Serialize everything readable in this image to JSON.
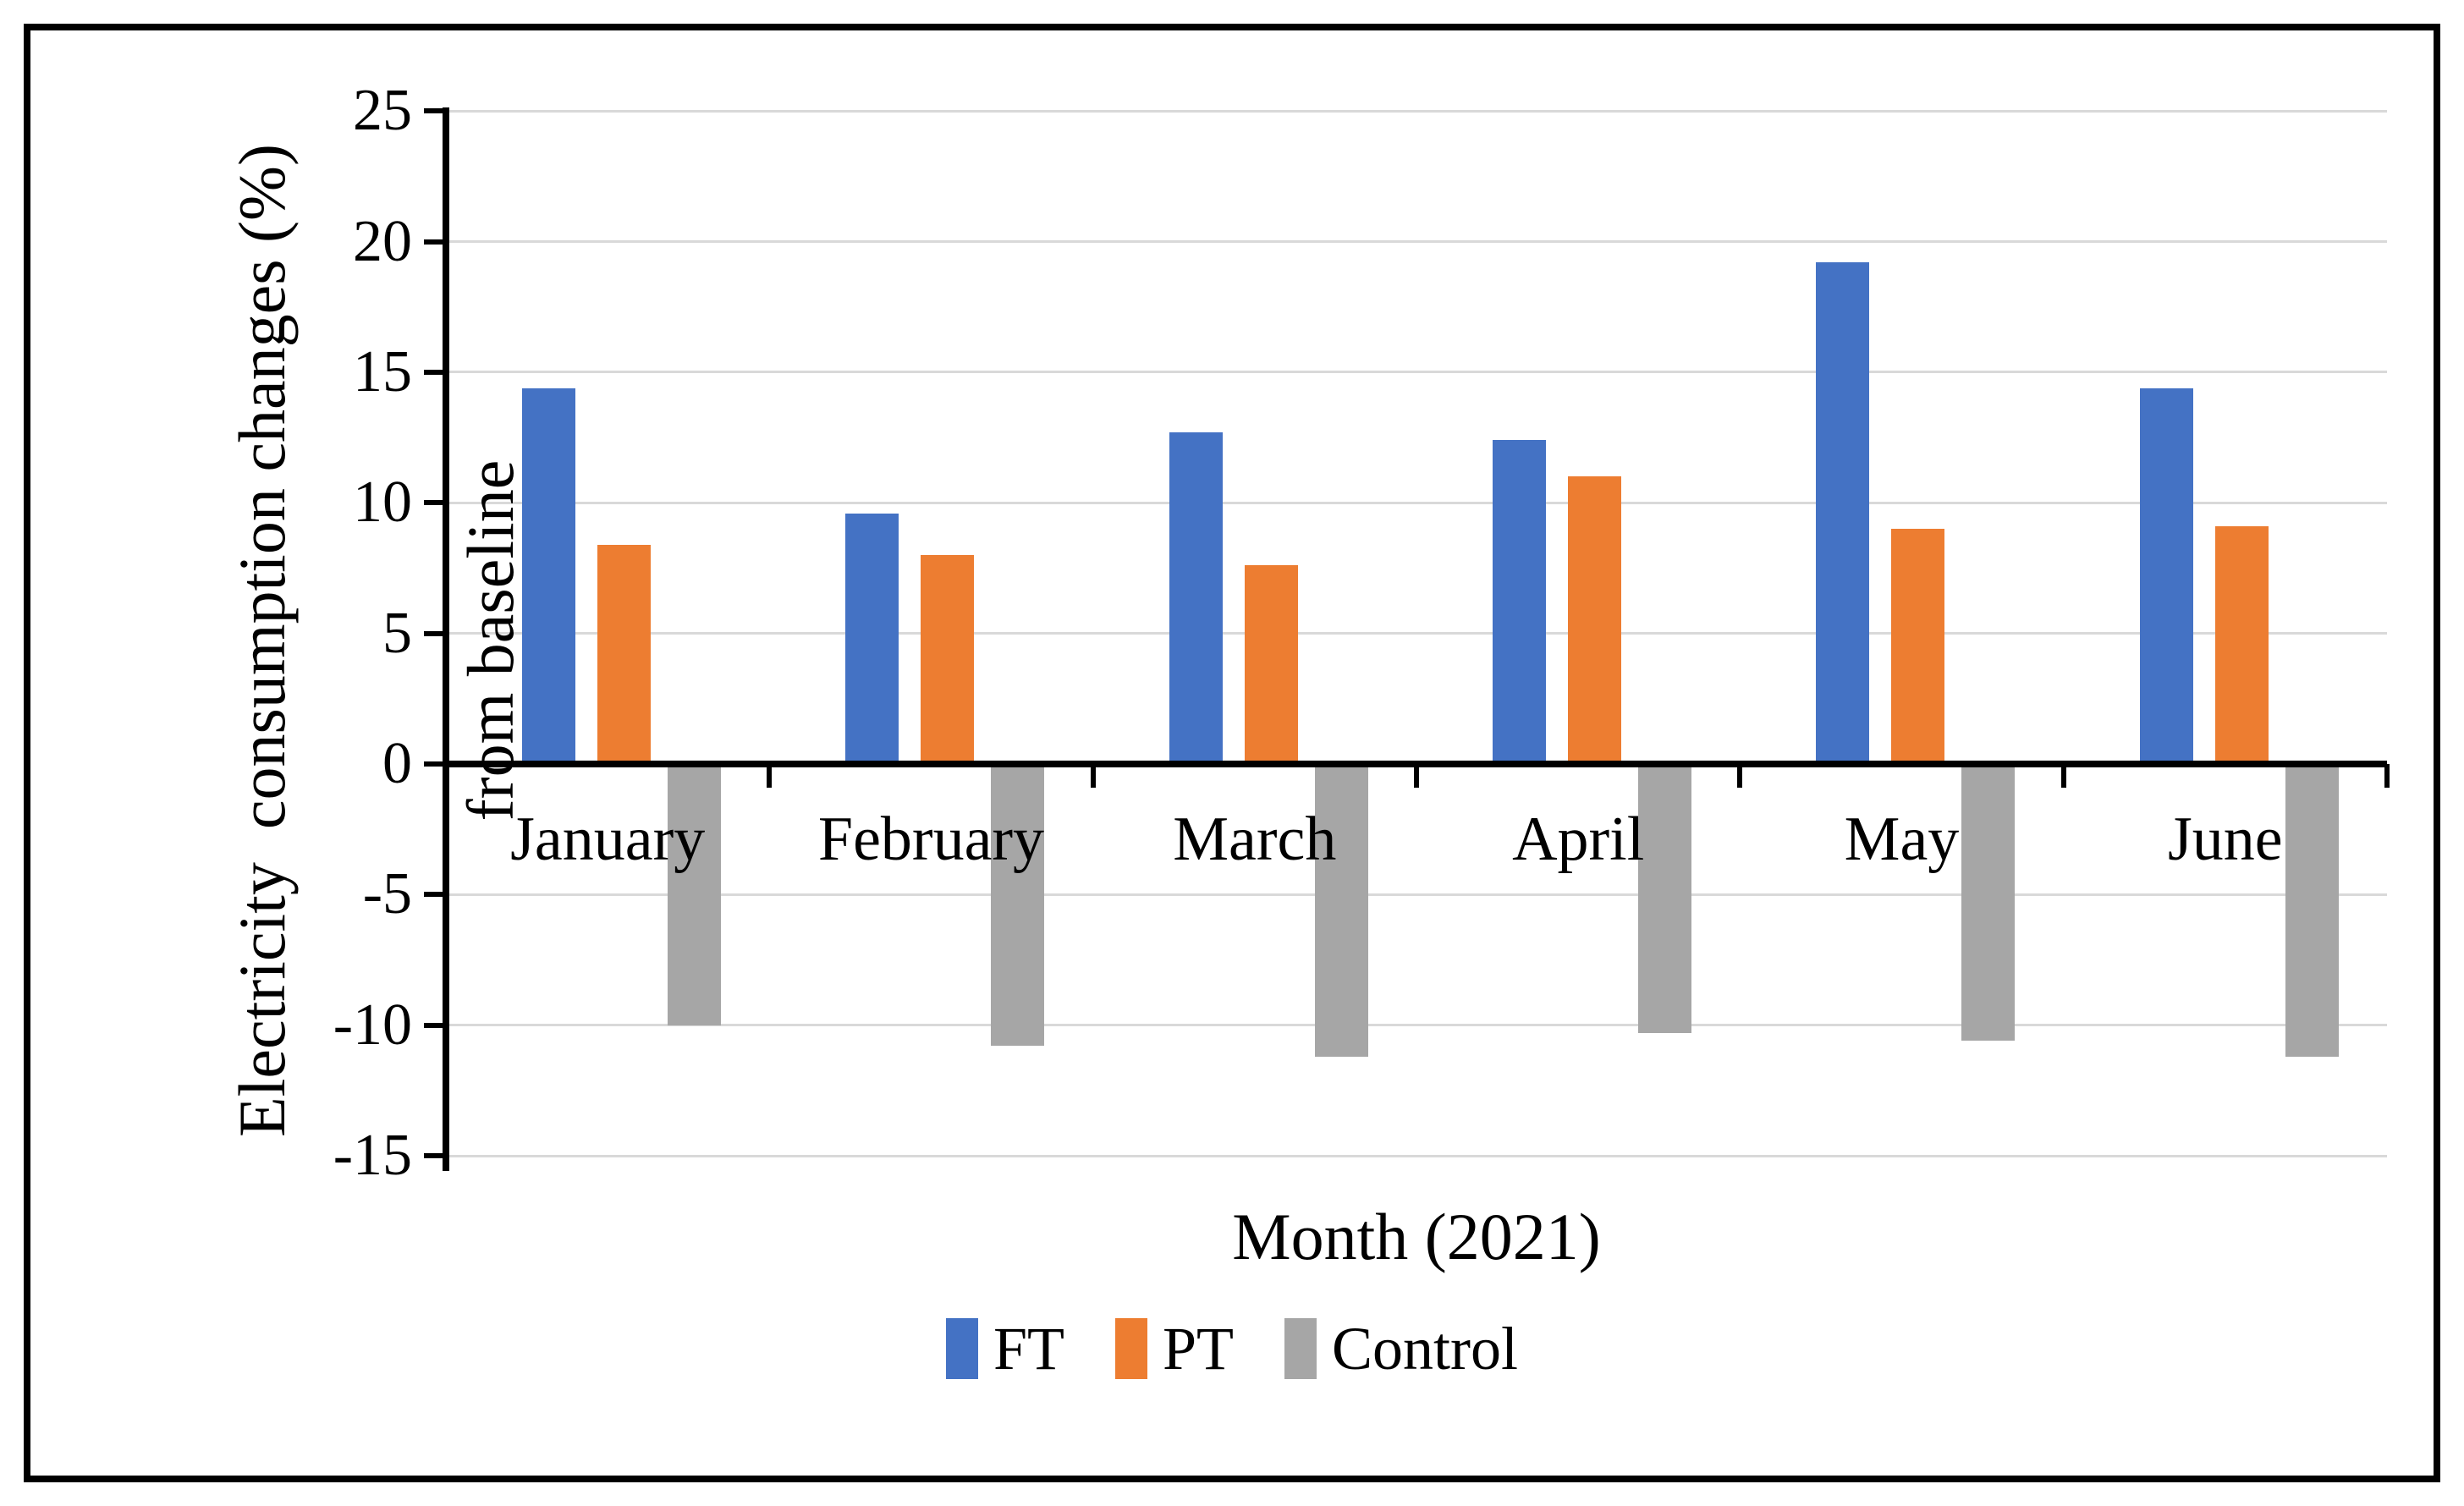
{
  "chart_data": {
    "type": "bar",
    "title": "",
    "xlabel": "Month (2021)",
    "ylabel_line1": "Electricity  consumption changes (%)",
    "ylabel_line2": "from baseline",
    "categories": [
      "January",
      "February",
      "March",
      "April",
      "May",
      "June"
    ],
    "series": [
      {
        "name": "FT",
        "color": "#4472C4",
        "values": [
          14.4,
          9.6,
          12.7,
          12.4,
          19.2,
          14.4
        ]
      },
      {
        "name": "PT",
        "color": "#ED7D31",
        "values": [
          8.4,
          8.0,
          7.6,
          11.0,
          9.0,
          9.1
        ]
      },
      {
        "name": "Control",
        "color": "#A6A6A6",
        "values": [
          -10.0,
          -10.8,
          -11.2,
          -10.3,
          -10.6,
          -11.2
        ]
      }
    ],
    "y_ticks": [
      25,
      20,
      15,
      10,
      5,
      0,
      -5,
      -10,
      -15
    ],
    "ylim": [
      -15,
      25
    ],
    "grid": true,
    "legend_position": "bottom",
    "legend_labels": [
      "FT",
      "PT",
      "Control"
    ]
  },
  "colors": {
    "ft": "#4472C4",
    "pt": "#ED7D31",
    "control": "#A6A6A6",
    "gridline": "#D9D9D9",
    "axis": "#000000",
    "frame": "#000000",
    "background": "#FFFFFF"
  }
}
